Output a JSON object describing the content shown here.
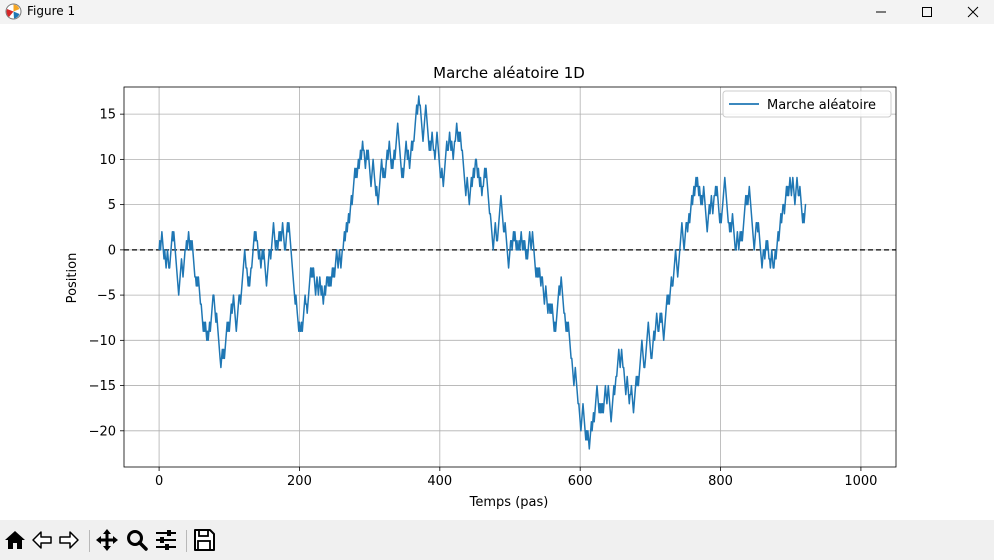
{
  "window": {
    "title": "Figure 1"
  },
  "toolbar": {
    "buttons": [
      "home-icon",
      "back-arrow-icon",
      "forward-arrow-icon",
      "pan-icon",
      "zoom-icon",
      "configure-subplots-icon",
      "save-icon"
    ]
  },
  "chart_data": {
    "type": "line",
    "title": "Marche aléatoire 1D",
    "xlabel": "Temps (pas)",
    "ylabel": "Position",
    "xlim": [
      -50,
      1050
    ],
    "ylim": [
      -24,
      18
    ],
    "xticks": [
      0,
      200,
      400,
      600,
      800,
      1000
    ],
    "yticks": [
      -20,
      -15,
      -10,
      -5,
      0,
      5,
      10,
      15
    ],
    "xtick_labels": [
      "0",
      "200",
      "400",
      "600",
      "800",
      "1000"
    ],
    "ytick_labels": [
      "−20",
      "−15",
      "−10",
      "−5",
      "0",
      "5",
      "10",
      "15"
    ],
    "grid": true,
    "legend": {
      "position": "top-right",
      "entries": [
        "Marche aléatoire"
      ]
    },
    "reference_line": {
      "y": 0,
      "style": "dashed",
      "color": "#000000"
    },
    "series": [
      {
        "name": "Marche aléatoire",
        "color": "#1f77b4",
        "anchors": [
          [
            0,
            0
          ],
          [
            5,
            1
          ],
          [
            15,
            -2
          ],
          [
            22,
            1
          ],
          [
            28,
            -5
          ],
          [
            38,
            0
          ],
          [
            45,
            1
          ],
          [
            52,
            -3
          ],
          [
            60,
            -6
          ],
          [
            70,
            -10
          ],
          [
            78,
            -5
          ],
          [
            88,
            -13
          ],
          [
            100,
            -9
          ],
          [
            115,
            -5
          ],
          [
            125,
            -2
          ],
          [
            132,
            -2
          ],
          [
            140,
            1
          ],
          [
            148,
            -1
          ],
          [
            158,
            0
          ],
          [
            168,
            1
          ],
          [
            180,
            0
          ],
          [
            190,
            -2
          ],
          [
            198,
            -8
          ],
          [
            202,
            -9
          ],
          [
            210,
            -6
          ],
          [
            218,
            -2
          ],
          [
            228,
            -4
          ],
          [
            240,
            -3
          ],
          [
            252,
            -1
          ],
          [
            262,
            0
          ],
          [
            272,
            4
          ],
          [
            282,
            8
          ],
          [
            292,
            11
          ],
          [
            300,
            9
          ],
          [
            312,
            5
          ],
          [
            322,
            8
          ],
          [
            335,
            11
          ],
          [
            345,
            9
          ],
          [
            355,
            11
          ],
          [
            363,
            12
          ],
          [
            372,
            16
          ],
          [
            382,
            14
          ],
          [
            392,
            11
          ],
          [
            402,
            8
          ],
          [
            412,
            11
          ],
          [
            422,
            12
          ],
          [
            432,
            11
          ],
          [
            440,
            7
          ],
          [
            452,
            10
          ],
          [
            462,
            7
          ],
          [
            472,
            4
          ],
          [
            482,
            1
          ],
          [
            492,
            2
          ],
          [
            502,
            1
          ],
          [
            512,
            0
          ],
          [
            525,
            -1
          ],
          [
            536,
            -2
          ],
          [
            546,
            -3
          ],
          [
            556,
            -6
          ],
          [
            566,
            -8
          ],
          [
            578,
            -7
          ],
          [
            588,
            -12
          ],
          [
            598,
            -17
          ],
          [
            608,
            -21
          ],
          [
            613,
            -22
          ],
          [
            620,
            -19
          ],
          [
            628,
            -17
          ],
          [
            640,
            -15
          ],
          [
            652,
            -14
          ],
          [
            662,
            -13
          ],
          [
            672,
            -16
          ],
          [
            682,
            -14
          ],
          [
            692,
            -13
          ],
          [
            702,
            -12
          ],
          [
            712,
            -9
          ],
          [
            722,
            -7
          ],
          [
            732,
            -4
          ],
          [
            742,
            0
          ],
          [
            752,
            3
          ],
          [
            762,
            7
          ],
          [
            772,
            5
          ],
          [
            782,
            3
          ],
          [
            792,
            6
          ],
          [
            802,
            4
          ],
          [
            812,
            3
          ],
          [
            822,
            0
          ],
          [
            832,
            2
          ],
          [
            842,
            6
          ],
          [
            852,
            3
          ],
          [
            862,
            0
          ],
          [
            870,
            -1
          ],
          [
            876,
            -2
          ],
          [
            882,
            2
          ],
          [
            890,
            5
          ],
          [
            902,
            7
          ],
          [
            912,
            6
          ],
          [
            922,
            5
          ]
        ]
      }
    ]
  }
}
